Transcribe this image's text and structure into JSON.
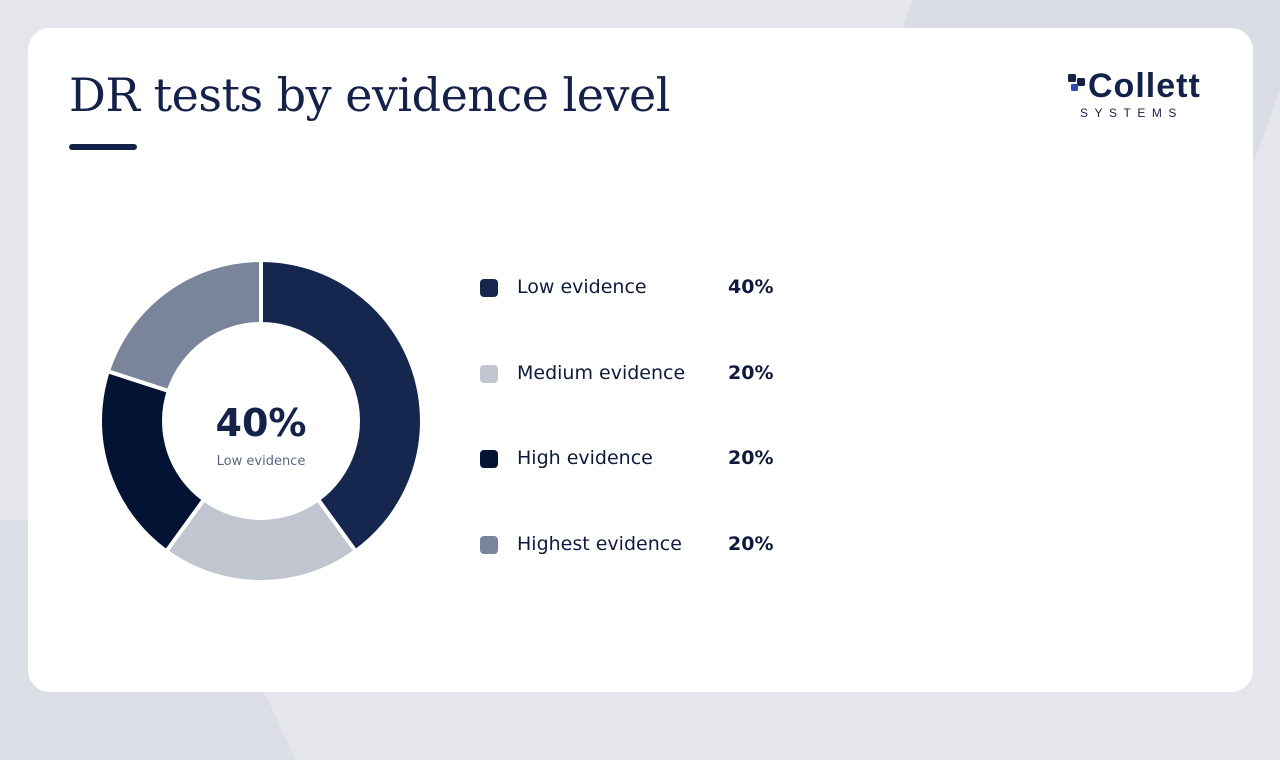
{
  "slide": {
    "title": "DR tests by evidence level"
  },
  "logo": {
    "name": "Collett",
    "tagline": "SYSTEMS"
  },
  "colors": {
    "background": "#e4e6ec",
    "card": "#ffffff",
    "accent": "#14224a",
    "low": "#15264f",
    "medium": "#c0c5d0",
    "high": "#021334",
    "highest": "#7a849b"
  },
  "chart_data": {
    "type": "pie",
    "variant": "donut",
    "categories": [
      "Low evidence",
      "Medium evidence",
      "High evidence",
      "Highest evidence"
    ],
    "values": [
      40,
      20,
      20,
      20
    ],
    "value_labels": [
      "40%",
      "20%",
      "20%",
      "20%"
    ],
    "colors": [
      "#15264f",
      "#c0c5d0",
      "#021334",
      "#7a849b"
    ],
    "center_value": "40%",
    "center_label": "Low evidence",
    "legend_position": "right"
  }
}
